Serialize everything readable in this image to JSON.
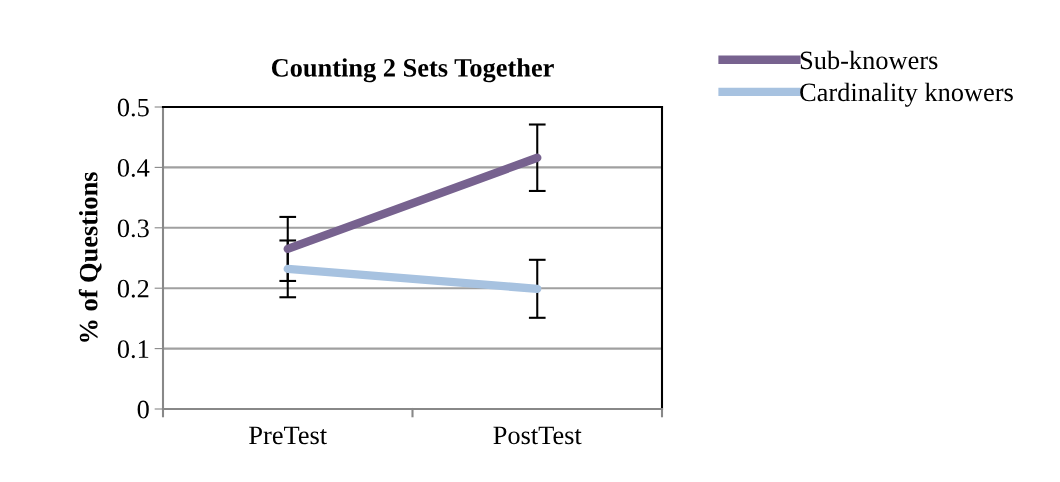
{
  "chart_data": {
    "type": "line",
    "title": "Counting 2 Sets Together",
    "ylabel": "% of Questions",
    "categories": [
      "PreTest",
      "PostTest"
    ],
    "series": [
      {
        "name": "Sub-knowers",
        "color": "#77628f",
        "values": [
          0.265,
          0.416
        ],
        "errors": [
          0.053,
          0.055
        ]
      },
      {
        "name": "Cardinality knowers",
        "color": "#a7c2e0",
        "values": [
          0.232,
          0.199
        ],
        "errors": [
          0.047,
          0.048
        ]
      }
    ],
    "ylim": [
      0,
      0.5
    ],
    "yticks": [
      0,
      0.1,
      0.2,
      0.3,
      0.4,
      0.5
    ],
    "grid": "y",
    "legend": "top right",
    "marker": "none",
    "line_style": "solid"
  }
}
